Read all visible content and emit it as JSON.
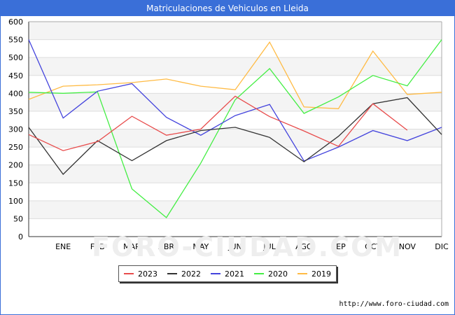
{
  "window": {
    "title": "Matriculaciones de Vehiculos en Lleida"
  },
  "source_text": "http://www.foro-ciudad.com",
  "watermark_text": "FORO-CIUDAD.COM",
  "chart_data": {
    "type": "line",
    "title": "Matriculaciones de Vehiculos en Lleida",
    "xlabel": "",
    "ylabel": "",
    "categories": [
      "",
      "ENE",
      "FEB",
      "MAR",
      "ABR",
      "MAY",
      "JUN",
      "JUL",
      "AGO",
      "SEP",
      "OCT",
      "NOV",
      "DIC"
    ],
    "ylim": [
      0,
      600
    ],
    "yticks": [
      0,
      50,
      100,
      150,
      200,
      250,
      300,
      350,
      400,
      450,
      500,
      550,
      600
    ],
    "grid": true,
    "legend_position": "bottom",
    "series": [
      {
        "name": "2023",
        "color": "#e84c4c",
        "values": [
          285,
          240,
          265,
          336,
          283,
          300,
          392,
          335,
          295,
          252,
          371,
          297,
          null
        ]
      },
      {
        "name": "2022",
        "color": "#333333",
        "values": [
          305,
          174,
          268,
          212,
          268,
          296,
          305,
          277,
          209,
          280,
          371,
          388,
          285
        ]
      },
      {
        "name": "2021",
        "color": "#4444dd",
        "values": [
          550,
          331,
          406,
          427,
          333,
          283,
          338,
          369,
          211,
          250,
          296,
          268,
          305
        ]
      },
      {
        "name": "2020",
        "color": "#44ee44",
        "values": [
          403,
          400,
          404,
          133,
          53,
          205,
          382,
          469,
          344,
          390,
          450,
          421,
          550
        ]
      },
      {
        "name": "2019",
        "color": "#ffbb44",
        "values": [
          383,
          420,
          424,
          430,
          440,
          420,
          410,
          543,
          362,
          357,
          518,
          397,
          403
        ]
      }
    ]
  }
}
